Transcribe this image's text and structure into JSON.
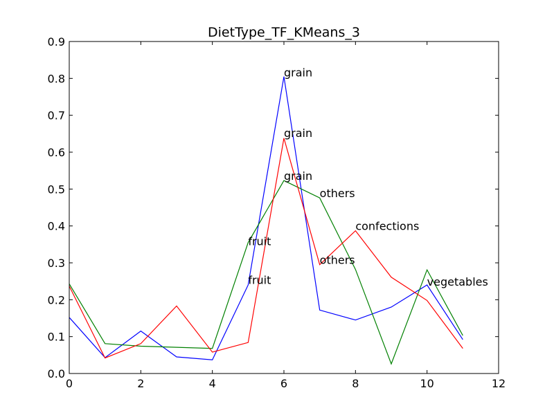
{
  "chart_data": {
    "type": "line",
    "title": "DietType_TF_KMeans_3",
    "xlabel": "",
    "ylabel": "",
    "xlim": [
      0,
      12
    ],
    "ylim": [
      0,
      0.9
    ],
    "xticks": [
      0,
      2,
      4,
      6,
      8,
      10,
      12
    ],
    "yticks": [
      0.0,
      0.1,
      0.2,
      0.3,
      0.4,
      0.5,
      0.6,
      0.7,
      0.8,
      0.9
    ],
    "x": [
      0,
      1,
      2,
      3,
      4,
      5,
      6,
      7,
      8,
      9,
      10,
      11
    ],
    "series": [
      {
        "color": "#0000ff",
        "values": [
          0.152,
          0.043,
          0.115,
          0.045,
          0.037,
          0.24,
          0.805,
          0.172,
          0.145,
          0.18,
          0.24,
          0.092
        ]
      },
      {
        "color": "#008000",
        "values": [
          0.243,
          0.081,
          0.074,
          0.071,
          0.068,
          0.355,
          0.523,
          0.476,
          0.282,
          0.026,
          0.281,
          0.103
        ]
      },
      {
        "color": "#ff0000",
        "values": [
          0.237,
          0.042,
          0.081,
          0.183,
          0.058,
          0.084,
          0.638,
          0.295,
          0.387,
          0.261,
          0.198,
          0.068
        ]
      }
    ],
    "annotations": [
      {
        "text": "grain",
        "x": 6,
        "y": 0.805
      },
      {
        "text": "grain",
        "x": 6,
        "y": 0.641
      },
      {
        "text": "grain",
        "x": 6,
        "y": 0.525
      },
      {
        "text": "others",
        "x": 7,
        "y": 0.478
      },
      {
        "text": "confections",
        "x": 8,
        "y": 0.389
      },
      {
        "text": "fruit",
        "x": 5,
        "y": 0.348
      },
      {
        "text": "others",
        "x": 7,
        "y": 0.297
      },
      {
        "text": "fruit",
        "x": 5,
        "y": 0.243
      },
      {
        "text": "vegetables",
        "x": 10,
        "y": 0.238
      }
    ]
  }
}
